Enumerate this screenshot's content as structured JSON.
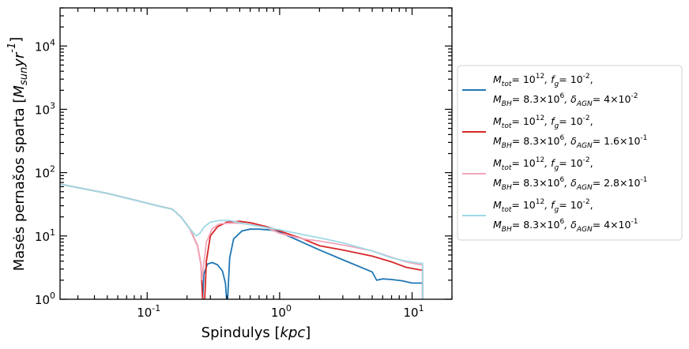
{
  "chart_data": {
    "type": "line",
    "title": "",
    "xlabel": "Spindulys [$kpc$]",
    "ylabel": "Masės pernašos sparta [$M_{sun} yr^{-1}$]",
    "xscale": "log",
    "yscale": "log",
    "xlim": [
      0.022,
      20
    ],
    "ylim": [
      1,
      40000
    ],
    "x_ticks": [
      {
        "value": 0.1,
        "label": "10^-1"
      },
      {
        "value": 1,
        "label": "10^0"
      },
      {
        "value": 10,
        "label": "10^1"
      }
    ],
    "y_ticks": [
      {
        "value": 1,
        "label": "10^0"
      },
      {
        "value": 10,
        "label": "10^1"
      },
      {
        "value": 100,
        "label": "10^2"
      },
      {
        "value": 1000,
        "label": "10^3"
      },
      {
        "value": 10000,
        "label": "10^4"
      }
    ],
    "grid": false,
    "legend_position": "outside-right",
    "series": [
      {
        "name": "M_tot = 10^12, f_g = 10^-2, M_BH = 8.3×10^6, δ_AGN = 4×10^-2",
        "legend": {
          "line1_a": "M",
          "line1_a_sub": "tot",
          "line1_b": "= 10",
          "line1_b_sup": "12",
          "line1_c": ", f",
          "line1_c_sub": "g",
          "line1_d": "= 10",
          "line1_d_sup": "-2",
          "line1_e": ",",
          "line2_a": "M",
          "line2_a_sub": "BH",
          "line2_b": "= 8.3×10",
          "line2_b_sup": "6",
          "line2_c": ", δ",
          "line2_c_sub": "AGN",
          "line2_d": "= 4×10",
          "line2_d_sup": "-2"
        },
        "color": "#1f77b4",
        "segments": [
          [
            [
              0.022,
              66
            ],
            [
              0.03,
              58
            ],
            [
              0.05,
              47
            ],
            [
              0.08,
              37
            ],
            [
              0.12,
              30
            ],
            [
              0.155,
              26.5
            ],
            [
              0.18,
              20
            ],
            [
              0.21,
              13
            ],
            [
              0.24,
              7
            ]
          ],
          [
            [
              0.262,
              1.0
            ],
            [
              0.268,
              2.5
            ],
            [
              0.285,
              3.6
            ],
            [
              0.31,
              3.8
            ],
            [
              0.34,
              3.5
            ],
            [
              0.37,
              2.8
            ],
            [
              0.39,
              1.8
            ],
            [
              0.398,
              1.0
            ]
          ],
          [
            [
              0.405,
              1.0
            ],
            [
              0.42,
              4.5
            ],
            [
              0.45,
              9
            ],
            [
              0.52,
              12
            ],
            [
              0.6,
              12.8
            ],
            [
              0.7,
              12.8
            ],
            [
              0.85,
              12.4
            ],
            [
              1.0,
              11.5
            ],
            [
              1.3,
              9
            ],
            [
              2.0,
              6
            ],
            [
              3.0,
              4.2
            ],
            [
              5.0,
              2.7
            ],
            [
              5.4,
              2.0
            ],
            [
              6.0,
              2.1
            ],
            [
              7.0,
              2.05
            ],
            [
              8.5,
              1.95
            ],
            [
              10.0,
              1.8
            ],
            [
              11.5,
              1.8
            ],
            [
              12.0,
              1.8
            ],
            [
              12.0,
              1.0
            ]
          ]
        ]
      },
      {
        "name": "M_tot = 10^12, f_g = 10^-2, M_BH = 8.3×10^6, δ_AGN = 1.6×10^-1",
        "legend": {
          "line1_a": "M",
          "line1_a_sub": "tot",
          "line1_b": "= 10",
          "line1_b_sup": "12",
          "line1_c": ", f",
          "line1_c_sub": "g",
          "line1_d": "= 10",
          "line1_d_sup": "-2",
          "line1_e": ",",
          "line2_a": "M",
          "line2_a_sub": "BH",
          "line2_b": "= 8.3×10",
          "line2_b_sup": "6",
          "line2_c": ", δ",
          "line2_c_sub": "AGN",
          "line2_d": "= 1.6×10",
          "line2_d_sup": "-1"
        },
        "color": "#d62728",
        "segments": [
          [
            [
              0.022,
              66
            ],
            [
              0.03,
              58
            ],
            [
              0.05,
              47
            ],
            [
              0.08,
              37
            ],
            [
              0.12,
              30
            ],
            [
              0.155,
              26.5
            ],
            [
              0.18,
              20
            ],
            [
              0.21,
              13
            ],
            [
              0.24,
              7
            ],
            [
              0.255,
              3.5
            ],
            [
              0.262,
              1.0
            ]
          ],
          [
            [
              0.272,
              1.0
            ],
            [
              0.28,
              4
            ],
            [
              0.3,
              10
            ],
            [
              0.34,
              14
            ],
            [
              0.4,
              16.5
            ],
            [
              0.5,
              17
            ],
            [
              0.6,
              16.2
            ],
            [
              0.8,
              14
            ],
            [
              1.0,
              12
            ],
            [
              1.5,
              9
            ],
            [
              2.0,
              7
            ],
            [
              3.0,
              6
            ],
            [
              5.0,
              4.8
            ],
            [
              7.0,
              3.9
            ],
            [
              9.0,
              3.2
            ],
            [
              11.5,
              2.9
            ],
            [
              12.0,
              2.9
            ],
            [
              12.0,
              1.0
            ]
          ]
        ]
      },
      {
        "name": "M_tot = 10^12, f_g = 10^-2, M_BH = 8.3×10^6, δ_AGN = 2.8×10^-1",
        "legend": {
          "line1_a": "M",
          "line1_a_sub": "tot",
          "line1_b": "= 10",
          "line1_b_sup": "12",
          "line1_c": ", f",
          "line1_c_sub": "g",
          "line1_d": "= 10",
          "line1_d_sup": "-2",
          "line1_e": ",",
          "line2_a": "M",
          "line2_a_sub": "BH",
          "line2_b": "= 8.3×10",
          "line2_b_sup": "6",
          "line2_c": ", δ",
          "line2_c_sub": "AGN",
          "line2_d": "= 2.8×10",
          "line2_d_sup": "-1"
        },
        "color": "#f4a6bb",
        "segments": [
          [
            [
              0.022,
              66
            ],
            [
              0.03,
              58
            ],
            [
              0.05,
              47
            ],
            [
              0.08,
              37
            ],
            [
              0.12,
              30
            ],
            [
              0.155,
              26.5
            ],
            [
              0.18,
              20
            ],
            [
              0.21,
              13
            ],
            [
              0.24,
              7
            ],
            [
              0.255,
              3.5
            ],
            [
              0.26,
              2
            ],
            [
              0.265,
              3
            ],
            [
              0.28,
              8
            ],
            [
              0.31,
              13
            ],
            [
              0.35,
              15.5
            ],
            [
              0.42,
              16
            ],
            [
              0.5,
              15.8
            ],
            [
              0.6,
              15.2
            ],
            [
              0.8,
              13.5
            ],
            [
              1.0,
              11
            ],
            [
              1.5,
              9
            ],
            [
              2.0,
              8.3
            ],
            [
              3.0,
              7.2
            ],
            [
              5.0,
              5.8
            ],
            [
              7.0,
              4.6
            ],
            [
              9.0,
              3.9
            ],
            [
              11.5,
              3.5
            ],
            [
              12.0,
              3.5
            ],
            [
              12.0,
              1.0
            ]
          ]
        ]
      },
      {
        "name": "M_tot = 10^12, f_g = 10^-2, M_BH = 8.3×10^6, δ_AGN = 4×10^-1",
        "legend": {
          "line1_a": "M",
          "line1_a_sub": "tot",
          "line1_b": "= 10",
          "line1_b_sup": "12",
          "line1_c": ", f",
          "line1_c_sub": "g",
          "line1_d": "= 10",
          "line1_d_sup": "-2",
          "line1_e": ",",
          "line2_a": "M",
          "line2_a_sub": "BH",
          "line2_b": "= 8.3×10",
          "line2_b_sup": "6",
          "line2_c": ", δ",
          "line2_c_sub": "AGN",
          "line2_d": "= 4×10",
          "line2_d_sup": "-1"
        },
        "color": "#9edae5",
        "segments": [
          [
            [
              0.022,
              66
            ],
            [
              0.03,
              58
            ],
            [
              0.05,
              47
            ],
            [
              0.08,
              37
            ],
            [
              0.12,
              30
            ],
            [
              0.155,
              26.5
            ],
            [
              0.18,
              20
            ],
            [
              0.21,
              13
            ],
            [
              0.235,
              10
            ],
            [
              0.25,
              11
            ],
            [
              0.27,
              14
            ],
            [
              0.3,
              16.5
            ],
            [
              0.35,
              17.5
            ],
            [
              0.42,
              17.5
            ],
            [
              0.5,
              16.2
            ],
            [
              0.6,
              15
            ],
            [
              0.7,
              14.2
            ],
            [
              1.0,
              12.5
            ],
            [
              1.5,
              10.5
            ],
            [
              2.0,
              9.3
            ],
            [
              3.0,
              7.8
            ],
            [
              5.0,
              5.8
            ],
            [
              7.0,
              4.5
            ],
            [
              9.0,
              4.0
            ],
            [
              11.5,
              3.7
            ],
            [
              12.0,
              3.7
            ],
            [
              12.0,
              1.0
            ]
          ]
        ]
      }
    ]
  }
}
